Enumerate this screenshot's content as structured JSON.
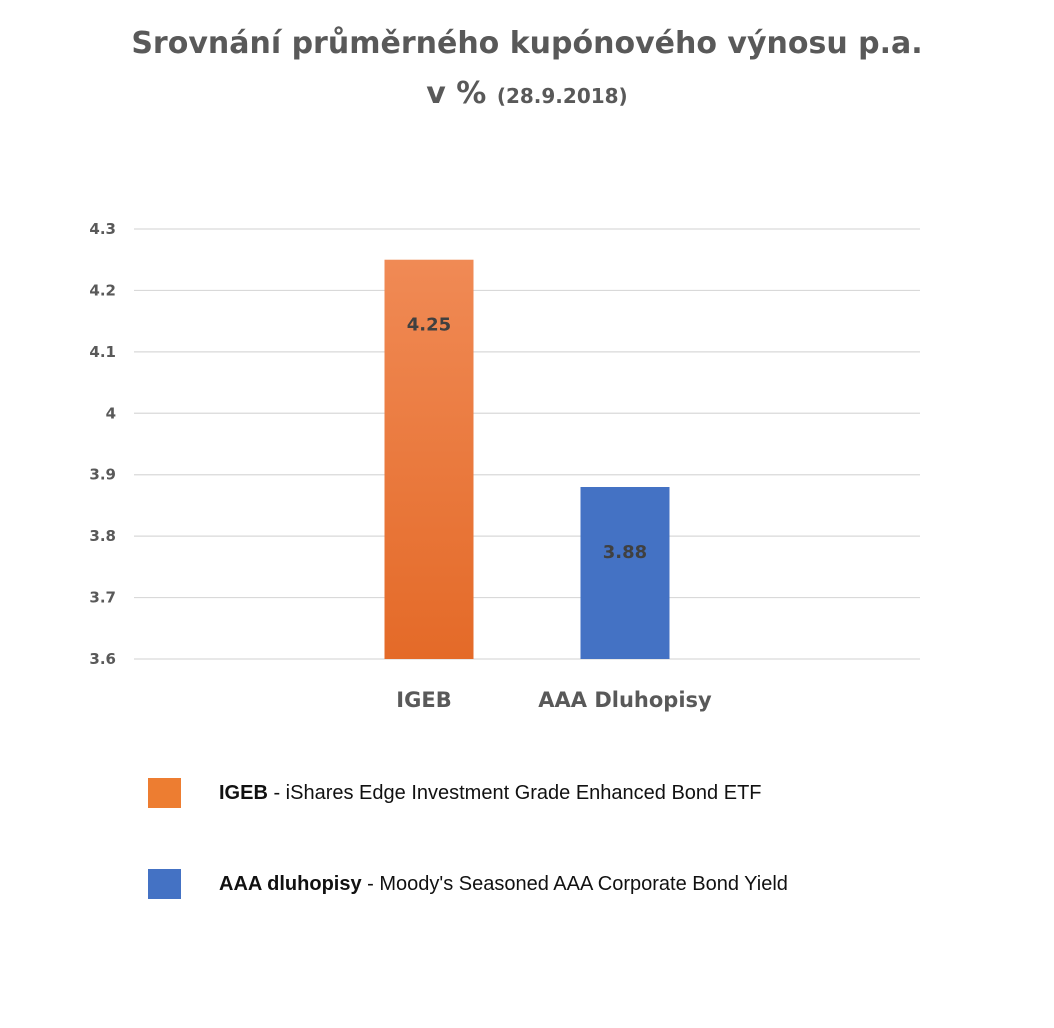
{
  "chart_data": {
    "type": "bar",
    "title": "Srovnání průměrného kupónového výnosu p.a.",
    "subtitle_main": "v %",
    "subtitle_date": "(28.9.2018)",
    "categories": [
      "IGEB",
      "AAA Dluhopisy"
    ],
    "values": [
      4.25,
      3.88
    ],
    "data_labels": [
      "4.25",
      "3.88"
    ],
    "bar_colors": [
      "#ed7d31",
      "#4472c4"
    ],
    "ylim": [
      3.6,
      4.3
    ],
    "y_ticks": [
      "4.3",
      "4.2",
      "4.1",
      "4",
      "3.9",
      "3.8",
      "3.7",
      "3.6"
    ],
    "grid": true,
    "legend_placement": "bottom"
  },
  "legend": [
    {
      "abbr": "IGEB",
      "text": " - iShares Edge Investment Grade Enhanced Bond ETF",
      "color": "#ed7d31"
    },
    {
      "abbr": "AAA dluhopisy",
      "text": " - Moody's Seasoned AAA Corporate Bond Yield",
      "color": "#4472c4"
    }
  ]
}
